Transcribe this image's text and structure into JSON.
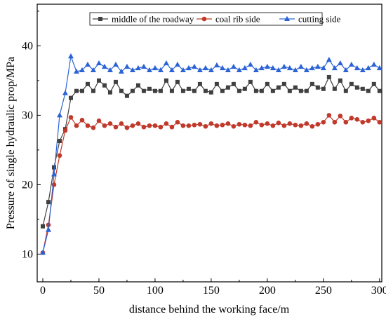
{
  "chart_data": {
    "type": "line",
    "title": "",
    "xlabel": "distance behind the working face/m",
    "ylabel": "Pressure of single hydraulic prop/MPa",
    "xlim": [
      -5,
      302
    ],
    "ylim": [
      6,
      46
    ],
    "xticks": [
      0,
      50,
      100,
      150,
      200,
      250,
      300
    ],
    "yticks": [
      10,
      20,
      30,
      40
    ],
    "grid": false,
    "legend": "top-center",
    "x": [
      0,
      5,
      10,
      15,
      20,
      25,
      30,
      35,
      40,
      45,
      50,
      55,
      60,
      65,
      70,
      75,
      80,
      85,
      90,
      95,
      100,
      105,
      110,
      115,
      120,
      125,
      130,
      135,
      140,
      145,
      150,
      155,
      160,
      165,
      170,
      175,
      180,
      185,
      190,
      195,
      200,
      205,
      210,
      215,
      220,
      225,
      230,
      235,
      240,
      245,
      250,
      255,
      260,
      265,
      270,
      275,
      280,
      285,
      290,
      295,
      300
    ],
    "series": [
      {
        "name": "middle of the roadway",
        "color": "#404040",
        "marker": "square",
        "values": [
          14.0,
          17.5,
          22.5,
          26.3,
          28.0,
          32.5,
          33.5,
          33.5,
          34.5,
          33.5,
          35.0,
          34.3,
          33.3,
          34.8,
          33.5,
          32.8,
          33.5,
          34.3,
          33.5,
          33.8,
          33.5,
          33.5,
          35.0,
          33.5,
          34.8,
          33.5,
          33.8,
          33.5,
          34.5,
          33.5,
          33.3,
          34.5,
          33.5,
          34.0,
          34.5,
          33.5,
          33.8,
          34.8,
          33.5,
          33.5,
          34.5,
          33.5,
          34.0,
          34.5,
          33.5,
          34.0,
          33.5,
          33.5,
          34.5,
          34.0,
          33.8,
          35.5,
          33.8,
          35.0,
          33.5,
          34.5,
          34.0,
          33.8,
          33.5,
          34.5,
          33.5
        ]
      },
      {
        "name": "coal rib side",
        "color": "#c0392b",
        "marker": "circle",
        "values": [
          10.2,
          14.2,
          20.0,
          24.2,
          27.8,
          29.7,
          28.5,
          29.3,
          28.5,
          28.2,
          29.2,
          28.5,
          28.8,
          28.3,
          28.8,
          28.2,
          28.5,
          28.8,
          28.3,
          28.5,
          28.5,
          28.3,
          28.8,
          28.3,
          29.0,
          28.5,
          28.5,
          28.6,
          28.7,
          28.4,
          28.8,
          28.5,
          28.6,
          28.8,
          28.4,
          28.7,
          28.6,
          28.5,
          29.0,
          28.6,
          28.8,
          28.5,
          28.9,
          28.5,
          28.8,
          28.6,
          28.5,
          28.8,
          28.4,
          28.7,
          29.0,
          30.0,
          29.0,
          29.9,
          29.0,
          29.6,
          29.4,
          29.0,
          29.2,
          29.6,
          29.0
        ]
      },
      {
        "name": "cutting side",
        "color": "#2b63d6",
        "marker": "triangle",
        "values": [
          10.2,
          13.5,
          21.5,
          30.0,
          33.2,
          38.5,
          36.3,
          36.5,
          37.3,
          36.5,
          37.5,
          37.0,
          36.5,
          37.3,
          36.3,
          37.0,
          36.5,
          36.8,
          37.0,
          36.5,
          36.8,
          36.5,
          37.5,
          36.5,
          37.3,
          36.5,
          36.8,
          37.0,
          36.5,
          36.8,
          36.5,
          37.2,
          36.8,
          36.5,
          37.0,
          36.5,
          36.8,
          37.3,
          36.5,
          36.8,
          37.0,
          36.8,
          36.5,
          37.0,
          36.8,
          36.5,
          37.0,
          36.5,
          36.8,
          37.0,
          36.8,
          38.0,
          36.8,
          37.5,
          36.5,
          37.3,
          36.8,
          36.5,
          36.8,
          37.3,
          36.8
        ]
      }
    ]
  }
}
